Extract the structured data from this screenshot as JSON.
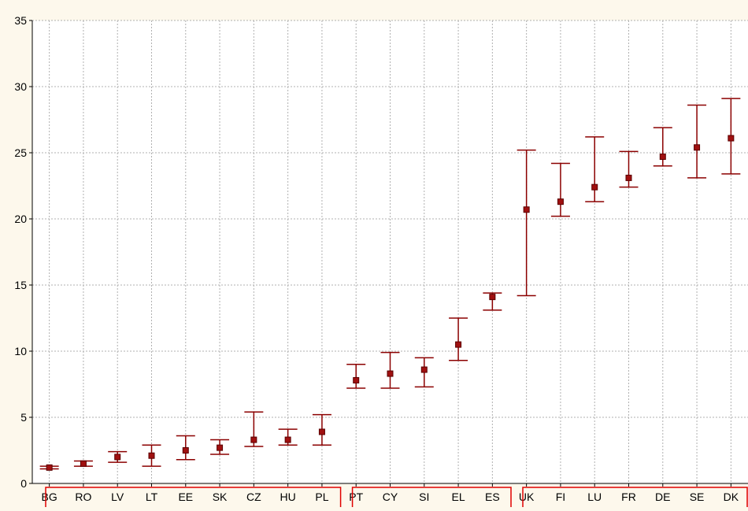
{
  "chart_data": {
    "type": "scatter",
    "title": "",
    "xlabel": "",
    "ylabel": "",
    "ylim": [
      0,
      35
    ],
    "yticks": [
      0,
      5,
      10,
      15,
      20,
      25,
      30,
      35
    ],
    "grid": true,
    "categories": [
      "BG",
      "RO",
      "LV",
      "LT",
      "EE",
      "SK",
      "CZ",
      "HU",
      "PL",
      "PT",
      "CY",
      "SI",
      "EL",
      "ES",
      "UK",
      "FI",
      "LU",
      "FR",
      "DE",
      "SE",
      "DK"
    ],
    "values": [
      1.2,
      1.5,
      2.0,
      2.1,
      2.5,
      2.7,
      3.3,
      3.3,
      3.9,
      7.8,
      8.3,
      8.6,
      10.5,
      14.1,
      20.7,
      21.3,
      22.4,
      23.1,
      24.7,
      25.4,
      26.1
    ],
    "lower": [
      1.1,
      1.3,
      1.6,
      1.3,
      1.8,
      2.2,
      2.8,
      2.9,
      2.9,
      7.2,
      7.2,
      7.3,
      9.3,
      13.1,
      14.2,
      20.2,
      21.3,
      22.4,
      24.0,
      23.1,
      23.4
    ],
    "upper": [
      1.3,
      1.7,
      2.4,
      2.9,
      3.6,
      3.3,
      5.4,
      4.1,
      5.2,
      9.0,
      9.9,
      9.5,
      12.5,
      14.4,
      25.2,
      24.2,
      26.2,
      25.1,
      26.9,
      28.6,
      29.1
    ],
    "groups": [
      [
        "BG",
        "RO",
        "LV",
        "LT",
        "EE",
        "SK",
        "CZ",
        "HU",
        "PL"
      ],
      [
        "PT",
        "CY",
        "SI",
        "EL",
        "ES"
      ],
      [
        "UK",
        "FI",
        "LU",
        "FR",
        "DE",
        "SE",
        "DK"
      ]
    ],
    "colors": {
      "series": "#8b0000",
      "group_box": "#e00000",
      "grid": "#b0b0b0"
    }
  }
}
